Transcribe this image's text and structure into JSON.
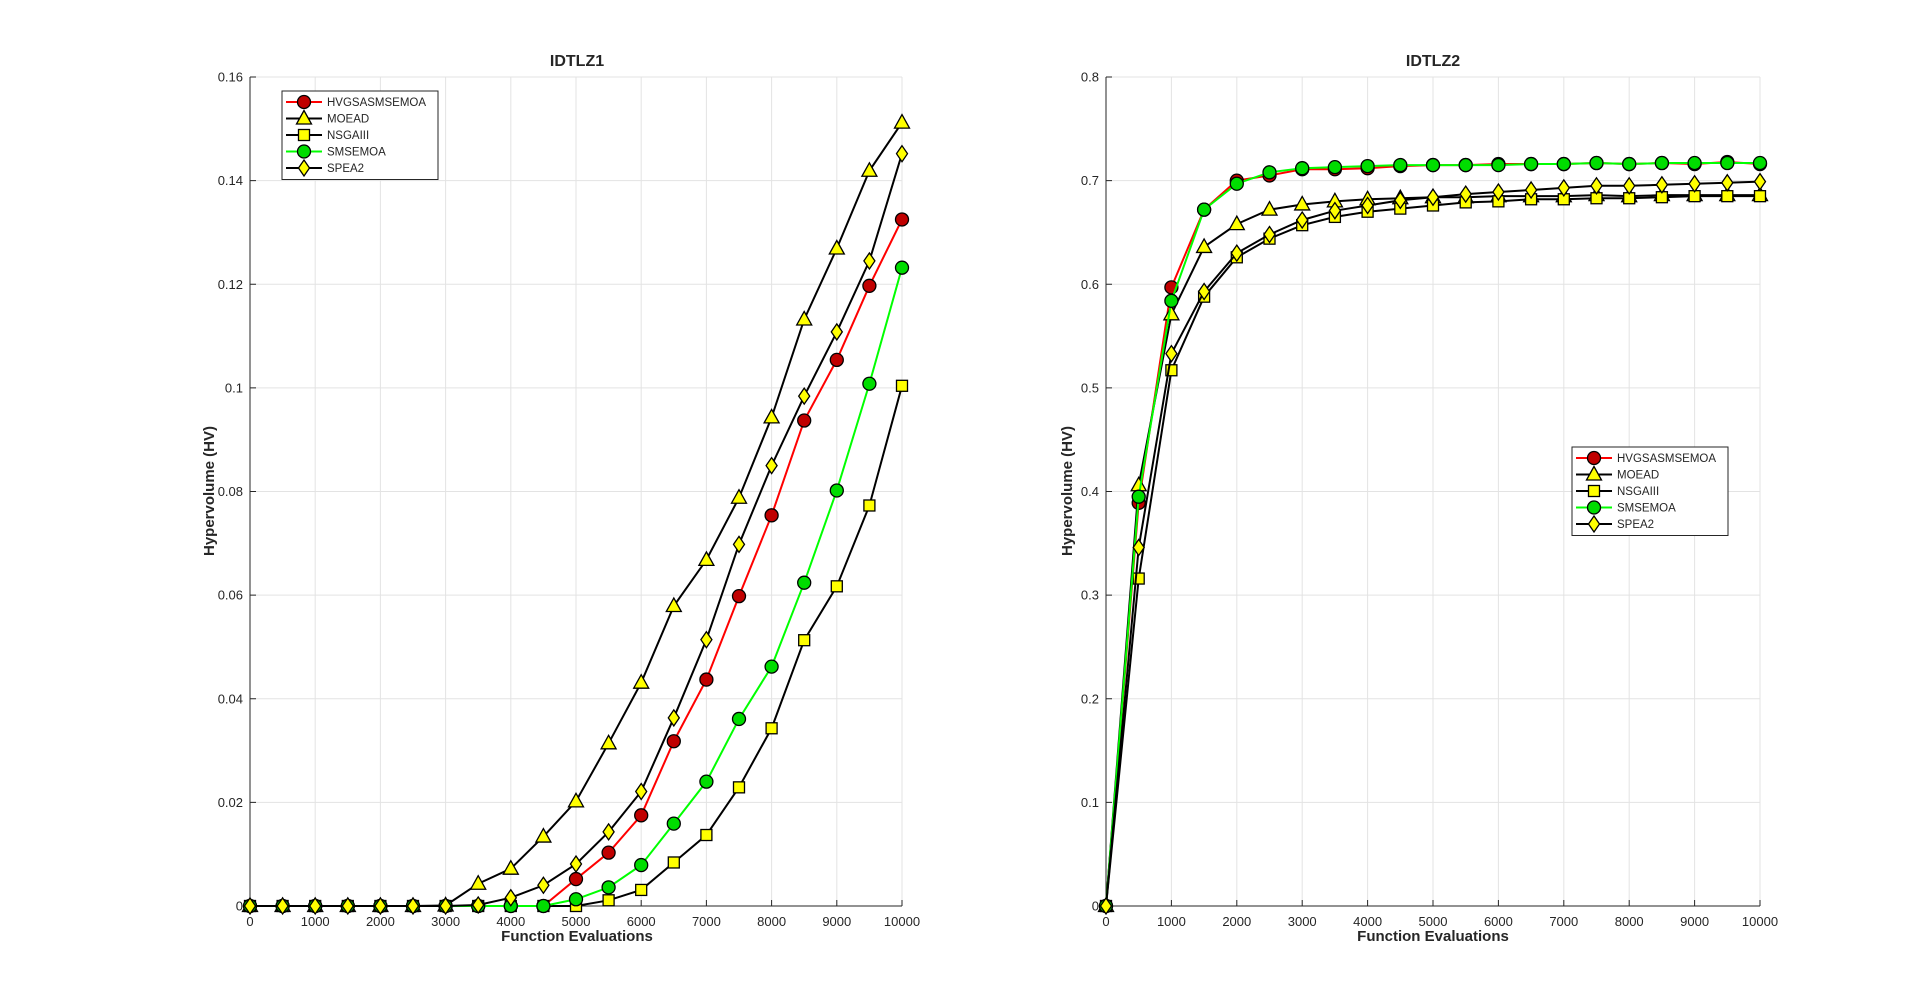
{
  "chart_data": [
    {
      "type": "line",
      "title": "IDTLZ1",
      "xlabel": "Function Evaluations",
      "ylabel": "Hypervolume (HV)",
      "xlim": [
        0,
        10000
      ],
      "ylim": [
        0,
        0.16
      ],
      "xticks": [
        0,
        1000,
        2000,
        3000,
        4000,
        5000,
        6000,
        7000,
        8000,
        9000,
        10000
      ],
      "yticks": [
        0,
        0.02,
        0.04,
        0.06,
        0.08,
        0.1,
        0.12,
        0.14,
        0.16
      ],
      "ytick_labels": [
        "0",
        "0.02",
        "0.04",
        "0.06",
        "0.08",
        "0.1",
        "0.12",
        "0.14",
        "0.16"
      ],
      "grid": true,
      "legend_position": "top-left",
      "series": [
        {
          "name": "HVGSASMSEMOA",
          "color": "#ff0000",
          "marker": "circle",
          "marker_fill": "#c00000",
          "x": [
            0,
            500,
            1000,
            1500,
            2000,
            2500,
            3000,
            3500,
            4000,
            4500,
            5000,
            5500,
            6000,
            6500,
            7000,
            7500,
            8000,
            8500,
            9000,
            9500,
            10000
          ],
          "y": [
            0,
            0,
            0,
            0,
            0,
            0,
            0,
            0,
            0,
            0,
            0.0052,
            0.0103,
            0.0175,
            0.0318,
            0.0437,
            0.0598,
            0.0754,
            0.0937,
            0.1054,
            0.1197,
            0.1325
          ]
        },
        {
          "name": "MOEAD",
          "color": "#000000",
          "marker": "triangle",
          "marker_fill": "#ffff00",
          "x": [
            0,
            500,
            1000,
            1500,
            2000,
            2500,
            3000,
            3500,
            4000,
            4500,
            5000,
            5500,
            6000,
            6500,
            7000,
            7500,
            8000,
            8500,
            9000,
            9500,
            10000
          ],
          "y": [
            0,
            0,
            0,
            0,
            0,
            0,
            0.0001,
            0.0043,
            0.0072,
            0.0134,
            0.0202,
            0.0314,
            0.0431,
            0.0579,
            0.0668,
            0.0788,
            0.0943,
            0.1132,
            0.1269,
            0.1419,
            0.1512
          ]
        },
        {
          "name": "NSGAIII",
          "color": "#000000",
          "marker": "square",
          "marker_fill": "#ffff00",
          "x": [
            0,
            500,
            1000,
            1500,
            2000,
            2500,
            3000,
            3500,
            4000,
            4500,
            5000,
            5500,
            6000,
            6500,
            7000,
            7500,
            8000,
            8500,
            9000,
            9500,
            10000
          ],
          "y": [
            0,
            0,
            0,
            0,
            0,
            0,
            0,
            0,
            0,
            0,
            0,
            0.0011,
            0.0031,
            0.0084,
            0.0137,
            0.0229,
            0.0343,
            0.0513,
            0.0617,
            0.0773,
            0.1004
          ]
        },
        {
          "name": "SMSEMOA",
          "color": "#00ff00",
          "marker": "circle",
          "marker_fill": "#00dd00",
          "x": [
            0,
            500,
            1000,
            1500,
            2000,
            2500,
            3000,
            3500,
            4000,
            4500,
            5000,
            5500,
            6000,
            6500,
            7000,
            7500,
            8000,
            8500,
            9000,
            9500,
            10000
          ],
          "y": [
            0,
            0,
            0,
            0,
            0,
            0,
            0,
            0,
            0,
            0,
            0.0013,
            0.0036,
            0.0079,
            0.0159,
            0.024,
            0.0361,
            0.0462,
            0.0624,
            0.0802,
            0.1008,
            0.1232
          ]
        },
        {
          "name": "SPEA2",
          "color": "#000000",
          "marker": "diamond",
          "marker_fill": "#ffff00",
          "x": [
            0,
            500,
            1000,
            1500,
            2000,
            2500,
            3000,
            3500,
            4000,
            4500,
            5000,
            5500,
            6000,
            6500,
            7000,
            7500,
            8000,
            8500,
            9000,
            9500,
            10000
          ],
          "y": [
            0,
            0,
            0,
            0,
            0,
            0,
            0,
            0.0002,
            0.0016,
            0.004,
            0.0081,
            0.0143,
            0.0221,
            0.0363,
            0.0514,
            0.0698,
            0.085,
            0.0984,
            0.1108,
            0.1245,
            0.1452
          ]
        }
      ]
    },
    {
      "type": "line",
      "title": "IDTLZ2",
      "xlabel": "Function Evaluations",
      "ylabel": "Hypervolume (HV)",
      "xlim": [
        0,
        10000
      ],
      "ylim": [
        0,
        0.8
      ],
      "xticks": [
        0,
        1000,
        2000,
        3000,
        4000,
        5000,
        6000,
        7000,
        8000,
        9000,
        10000
      ],
      "yticks": [
        0,
        0.1,
        0.2,
        0.3,
        0.4,
        0.5,
        0.6,
        0.7,
        0.8
      ],
      "ytick_labels": [
        "0",
        "0.1",
        "0.2",
        "0.3",
        "0.4",
        "0.5",
        "0.6",
        "0.7",
        "0.8"
      ],
      "grid": true,
      "legend_position": "right",
      "series": [
        {
          "name": "HVGSASMSEMOA",
          "color": "#ff0000",
          "marker": "circle",
          "marker_fill": "#c00000",
          "x": [
            0,
            500,
            1000,
            1500,
            2000,
            2500,
            3000,
            3500,
            4000,
            4500,
            5000,
            5500,
            6000,
            6500,
            7000,
            7500,
            8000,
            8500,
            9000,
            9500,
            10000
          ],
          "y": [
            0,
            0.389,
            0.597,
            0.672,
            0.7,
            0.705,
            0.711,
            0.711,
            0.712,
            0.714,
            0.715,
            0.715,
            0.716,
            0.716,
            0.716,
            0.717,
            0.716,
            0.717,
            0.716,
            0.718,
            0.716
          ]
        },
        {
          "name": "MOEAD",
          "color": "#000000",
          "marker": "triangle",
          "marker_fill": "#ffff00",
          "x": [
            0,
            500,
            1000,
            1500,
            2000,
            2500,
            3000,
            3500,
            4000,
            4500,
            5000,
            5500,
            6000,
            6500,
            7000,
            7500,
            8000,
            8500,
            9000,
            9500,
            10000
          ],
          "y": [
            0,
            0.406,
            0.571,
            0.636,
            0.658,
            0.672,
            0.677,
            0.68,
            0.682,
            0.683,
            0.684,
            0.684,
            0.685,
            0.685,
            0.685,
            0.686,
            0.685,
            0.686,
            0.686,
            0.686,
            0.686
          ]
        },
        {
          "name": "NSGAIII",
          "color": "#000000",
          "marker": "square",
          "marker_fill": "#ffff00",
          "x": [
            0,
            500,
            1000,
            1500,
            2000,
            2500,
            3000,
            3500,
            4000,
            4500,
            5000,
            5500,
            6000,
            6500,
            7000,
            7500,
            8000,
            8500,
            9000,
            9500,
            10000
          ],
          "y": [
            0,
            0.316,
            0.517,
            0.588,
            0.626,
            0.644,
            0.657,
            0.665,
            0.67,
            0.673,
            0.676,
            0.679,
            0.68,
            0.682,
            0.682,
            0.683,
            0.683,
            0.684,
            0.685,
            0.685,
            0.685
          ]
        },
        {
          "name": "SMSEMOA",
          "color": "#00ff00",
          "marker": "circle",
          "marker_fill": "#00dd00",
          "x": [
            0,
            500,
            1000,
            1500,
            2000,
            2500,
            3000,
            3500,
            4000,
            4500,
            5000,
            5500,
            6000,
            6500,
            7000,
            7500,
            8000,
            8500,
            9000,
            9500,
            10000
          ],
          "y": [
            0,
            0.395,
            0.584,
            0.672,
            0.697,
            0.708,
            0.712,
            0.713,
            0.714,
            0.715,
            0.715,
            0.715,
            0.715,
            0.716,
            0.716,
            0.717,
            0.716,
            0.717,
            0.717,
            0.717,
            0.717
          ]
        },
        {
          "name": "SPEA2",
          "color": "#000000",
          "marker": "diamond",
          "marker_fill": "#ffff00",
          "x": [
            0,
            500,
            1000,
            1500,
            2000,
            2500,
            3000,
            3500,
            4000,
            4500,
            5000,
            5500,
            6000,
            6500,
            7000,
            7500,
            8000,
            8500,
            9000,
            9500,
            10000
          ],
          "y": [
            0,
            0.346,
            0.533,
            0.593,
            0.63,
            0.648,
            0.662,
            0.671,
            0.676,
            0.681,
            0.684,
            0.687,
            0.689,
            0.691,
            0.693,
            0.695,
            0.695,
            0.696,
            0.697,
            0.698,
            0.699
          ]
        }
      ]
    }
  ]
}
